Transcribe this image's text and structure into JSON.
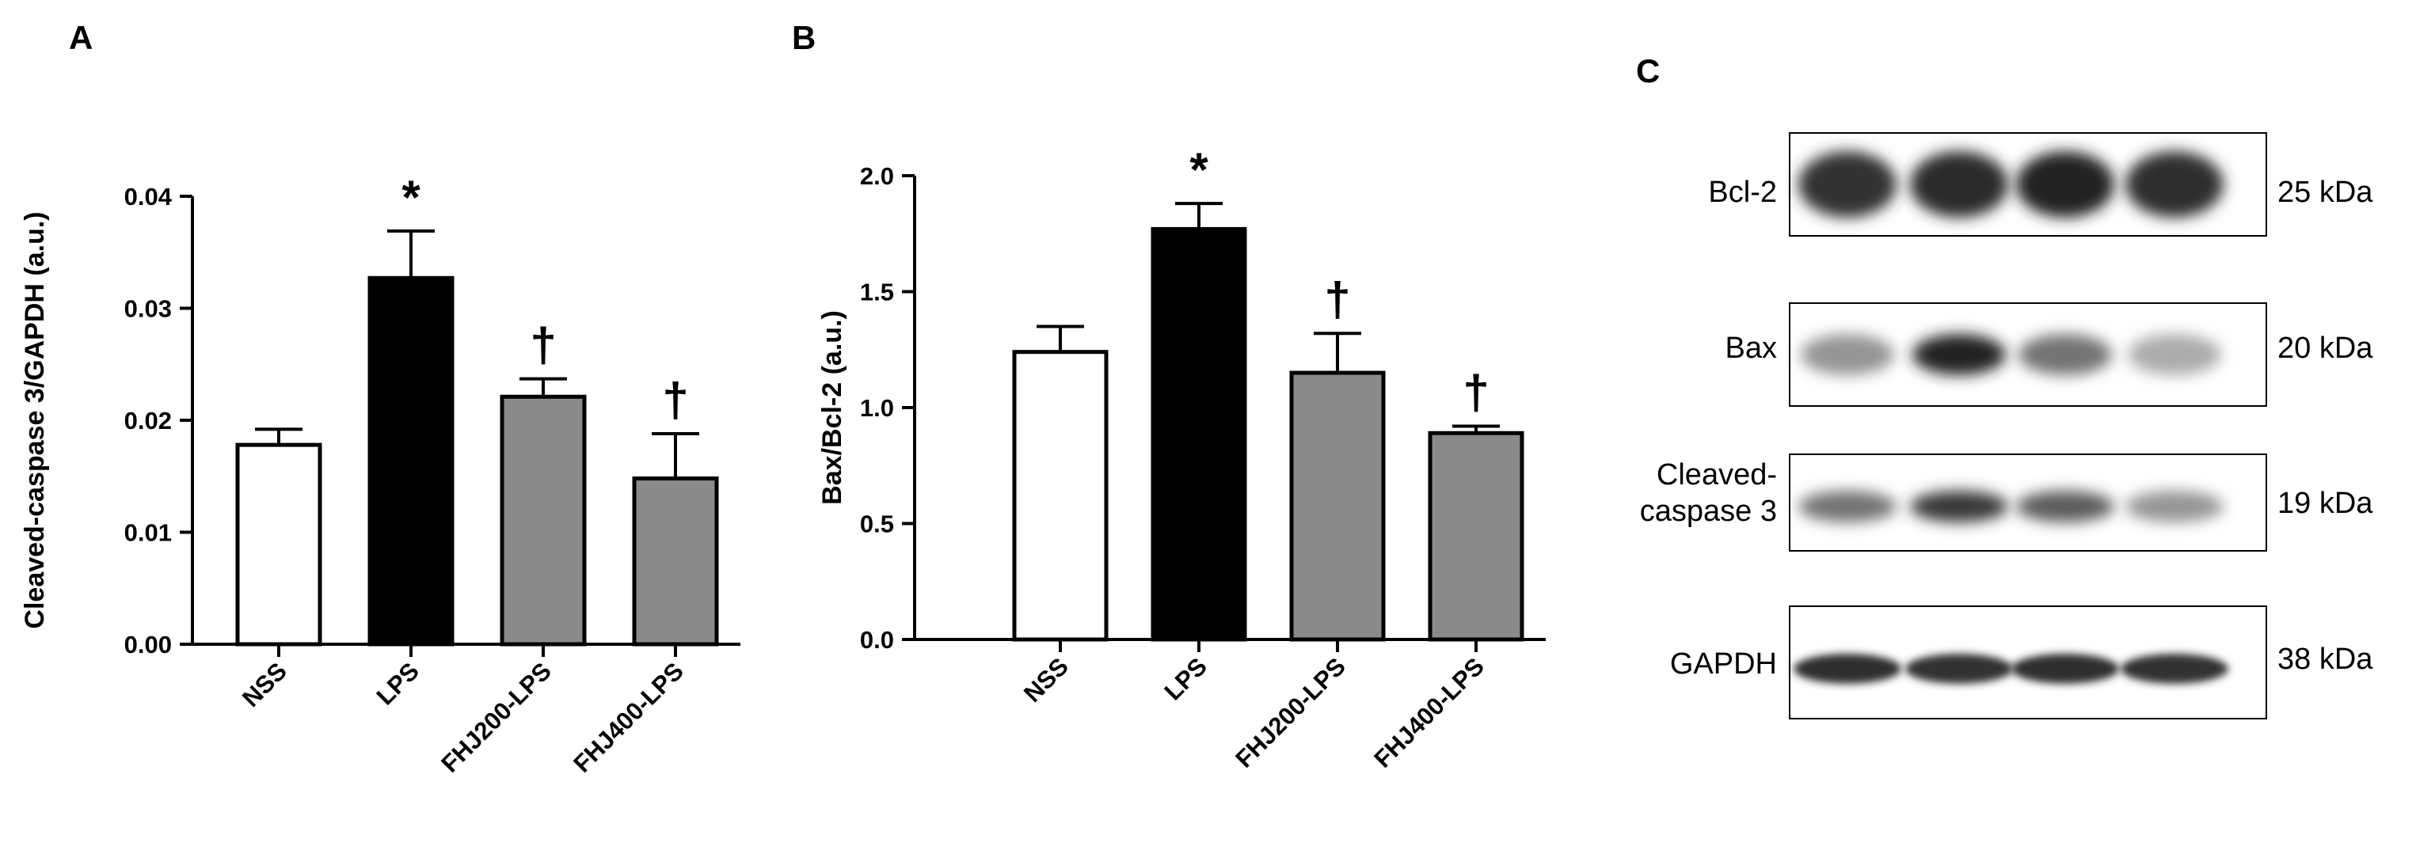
{
  "panels": {
    "A": "A",
    "B": "B",
    "C": "C"
  },
  "chart_data": [
    {
      "panel": "A",
      "type": "bar",
      "categories": [
        "NSS",
        "LPS",
        "FHJ200-LPS",
        "FHJ400-LPS"
      ],
      "values": [
        0.0178,
        0.0327,
        0.0221,
        0.0148
      ],
      "errors": [
        0.0014,
        0.0042,
        0.0016,
        0.004
      ],
      "significance": [
        "",
        "*",
        "†",
        "†"
      ],
      "bar_colors": [
        "#ffffff",
        "#000000",
        "#8a8a8a",
        "#8a8a8a"
      ],
      "ylabel": "Cleaved-caspase 3/GAPDH (a.u.)",
      "ylim": [
        0,
        0.04
      ],
      "yticks": [
        0.0,
        0.01,
        0.02,
        0.03,
        0.04
      ],
      "ytick_labels": [
        "0.00",
        "0.01",
        "0.02",
        "0.03",
        "0.04"
      ],
      "grid": false
    },
    {
      "panel": "B",
      "type": "bar",
      "categories": [
        "NSS",
        "LPS",
        "FHJ200-LPS",
        "FHJ400-LPS"
      ],
      "values": [
        1.24,
        1.77,
        1.15,
        0.89
      ],
      "errors": [
        0.11,
        0.11,
        0.17,
        0.03
      ],
      "significance": [
        "",
        "*",
        "†",
        "†"
      ],
      "bar_colors": [
        "#ffffff",
        "#000000",
        "#8a8a8a",
        "#8a8a8a"
      ],
      "ylabel": "Bax/Bcl-2 (a.u.)",
      "ylim": [
        0,
        2.0
      ],
      "yticks": [
        0.0,
        0.5,
        1.0,
        1.5,
        2.0
      ],
      "ytick_labels": [
        "0.0",
        "0.5",
        "1.0",
        "1.5",
        "2.0"
      ],
      "grid": false
    }
  ],
  "blot": {
    "rows": [
      {
        "label": "Bcl-2",
        "size": "25 kDa",
        "intensity": [
          0.78,
          0.82,
          0.85,
          0.8
        ]
      },
      {
        "label": "Bax",
        "size": "20 kDa",
        "intensity": [
          0.35,
          0.85,
          0.5,
          0.25
        ]
      },
      {
        "label_line1": "Cleaved-",
        "label_line2": "caspase 3",
        "size": "19 kDa",
        "intensity": [
          0.5,
          0.75,
          0.6,
          0.35
        ]
      },
      {
        "label": "GAPDH",
        "size": "38 kDa",
        "intensity": [
          0.8,
          0.78,
          0.8,
          0.78
        ]
      }
    ]
  }
}
